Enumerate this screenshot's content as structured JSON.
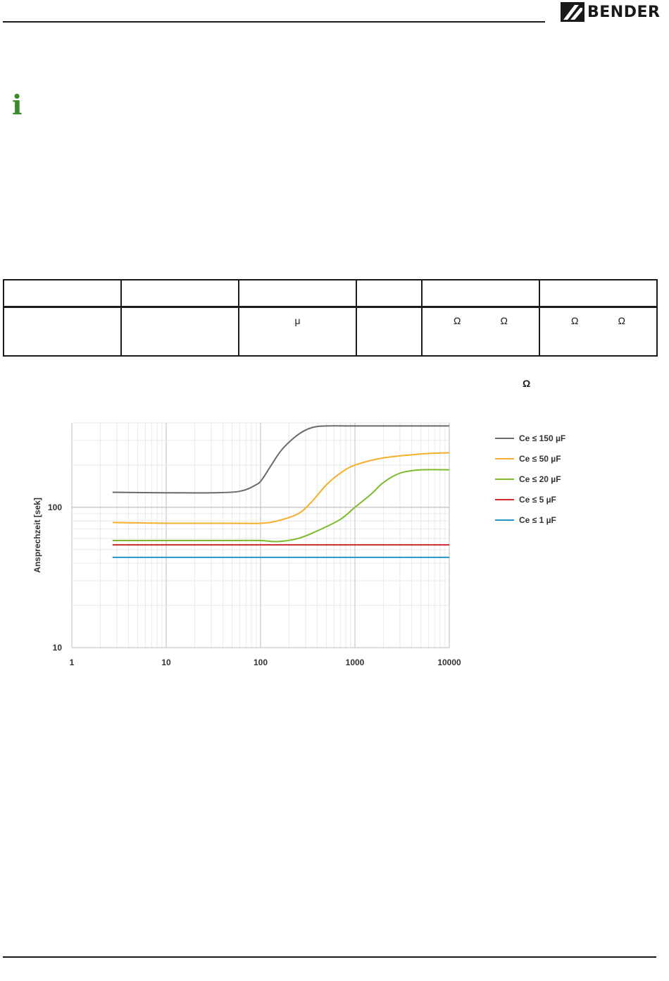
{
  "header": {
    "brand": "BENDER"
  },
  "info_icon": "info-icon",
  "table": {
    "header_cells": [
      "",
      "",
      "",
      "",
      "",
      ""
    ],
    "row": [
      "",
      "",
      "μ",
      "",
      [
        "Ω",
        "Ω"
      ],
      [
        "Ω",
        "Ω"
      ]
    ]
  },
  "omega_note": "Ω",
  "colors": {
    "info_green": "#3a8a2a",
    "ink": "#1a1a1a"
  },
  "chart_data": {
    "type": "line",
    "xscale": "log",
    "yscale": "log",
    "xlim": [
      1,
      10000
    ],
    "ylim": [
      10,
      400
    ],
    "ylabel": "Ansprechzeit [sek]",
    "xlabel": "",
    "x_ticks": [
      "1",
      "10",
      "100",
      "1000",
      "10000"
    ],
    "y_ticks": [
      "10",
      "100"
    ],
    "grid": true,
    "legend_position": "right",
    "series": [
      {
        "name": "Ce ≤ 150 µF",
        "color": "#6b6b6b",
        "points": [
          [
            2.7,
            128
          ],
          [
            10,
            127
          ],
          [
            30,
            127
          ],
          [
            60,
            130
          ],
          [
            90,
            145
          ],
          [
            105,
            160
          ],
          [
            130,
            200
          ],
          [
            170,
            260
          ],
          [
            250,
            330
          ],
          [
            350,
            370
          ],
          [
            500,
            380
          ],
          [
            1000,
            380
          ],
          [
            10000,
            380
          ]
        ]
      },
      {
        "name": "Ce ≤ 50 µF",
        "color": "#f5ae2d",
        "points": [
          [
            2.7,
            78
          ],
          [
            10,
            77
          ],
          [
            50,
            77
          ],
          [
            100,
            77
          ],
          [
            150,
            80
          ],
          [
            250,
            90
          ],
          [
            350,
            110
          ],
          [
            500,
            145
          ],
          [
            700,
            175
          ],
          [
            1000,
            200
          ],
          [
            2000,
            225
          ],
          [
            5000,
            240
          ],
          [
            10000,
            245
          ]
        ]
      },
      {
        "name": "Ce ≤ 20 µF",
        "color": "#7fba2a",
        "points": [
          [
            2.7,
            58
          ],
          [
            10,
            58
          ],
          [
            50,
            58
          ],
          [
            100,
            58
          ],
          [
            150,
            57
          ],
          [
            250,
            60
          ],
          [
            400,
            68
          ],
          [
            700,
            82
          ],
          [
            1000,
            100
          ],
          [
            1500,
            125
          ],
          [
            2000,
            150
          ],
          [
            3000,
            175
          ],
          [
            5000,
            185
          ],
          [
            10000,
            185
          ]
        ]
      },
      {
        "name": "Ce ≤ 5 µF",
        "color": "#d0272e",
        "points": [
          [
            2.7,
            54
          ],
          [
            10000,
            54
          ]
        ]
      },
      {
        "name": "Ce ≤ 1 µF",
        "color": "#2596c8",
        "points": [
          [
            2.7,
            44
          ],
          [
            10000,
            44
          ]
        ]
      }
    ]
  }
}
